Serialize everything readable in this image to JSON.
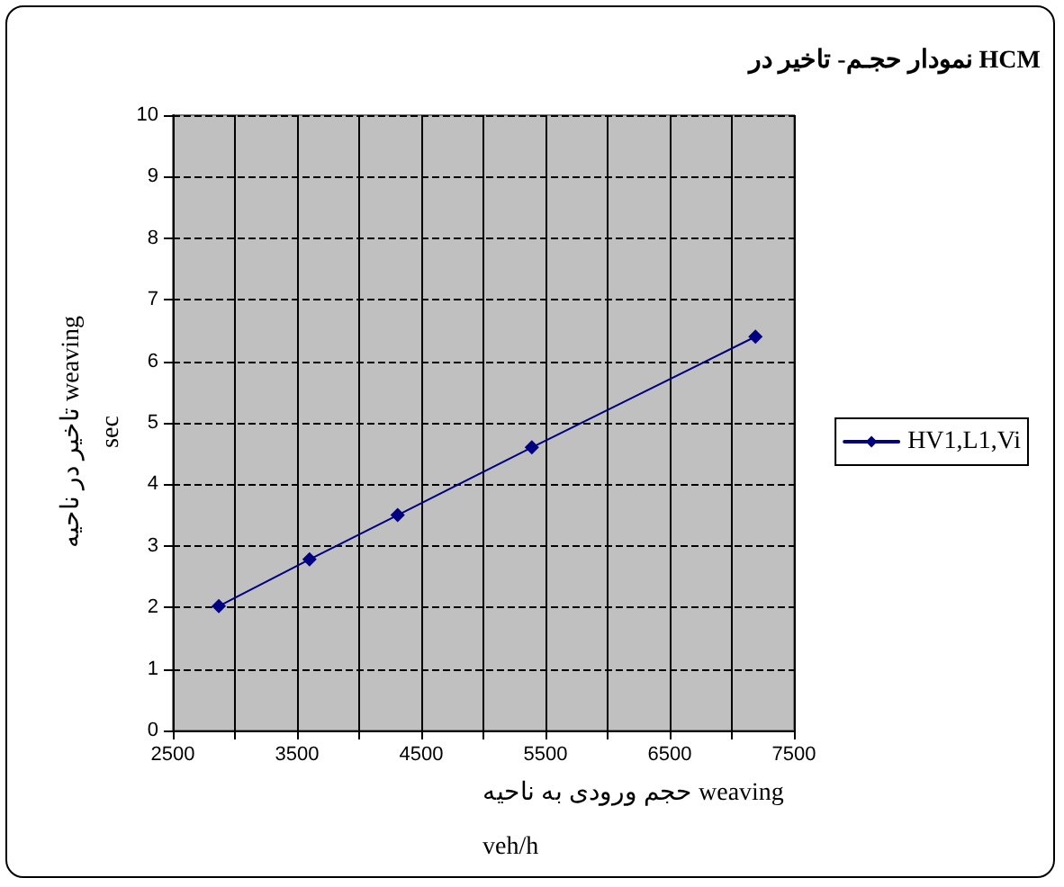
{
  "chart_data": {
    "type": "line",
    "title": "نمودار حجـم- تاخیر در HCM",
    "xlabel": "حجم ورودی به ناحیه weaving\nveh/h",
    "ylabel": "تاخیر در ناحیه weaving\nsec",
    "x": [
      2870,
      3600,
      4310,
      5390,
      7190
    ],
    "series": [
      {
        "name": "HV1,L1,Vi",
        "color": "#000080",
        "values": [
          2.02,
          2.78,
          3.5,
          4.6,
          6.4
        ]
      }
    ],
    "xlim": [
      2500,
      7500
    ],
    "xticks": [
      2500,
      {
        "value": 3000,
        "label": null
      },
      3500,
      {
        "value": 4000,
        "label": null
      },
      4500,
      {
        "value": 5000,
        "label": null
      },
      5500,
      {
        "value": 6000,
        "label": null
      },
      6500,
      {
        "value": 7000,
        "label": null
      },
      7500
    ],
    "ylim": [
      0,
      10
    ],
    "yticks": [
      0,
      1,
      2,
      3,
      4,
      5,
      6,
      7,
      8,
      9,
      10
    ],
    "grid": true,
    "legend": "right",
    "marker": "diamond",
    "line_style": "solid"
  }
}
